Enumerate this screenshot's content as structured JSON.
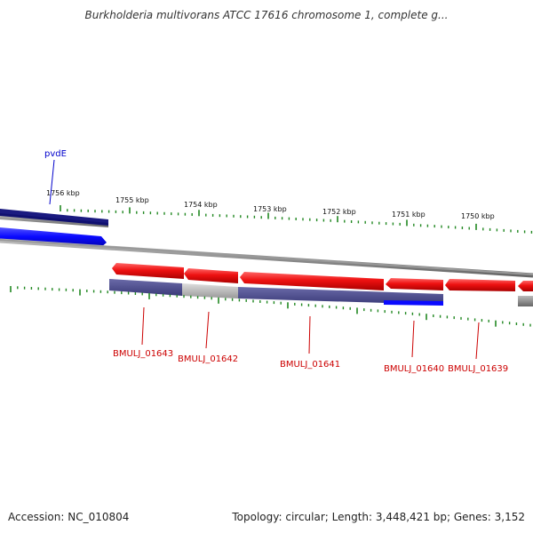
{
  "title": "Burkholderia multivorans ATCC 17616 chromosome 1, complete g...",
  "accession": "Accession: NC_010804",
  "summary": "Topology: circular; Length: 3,448,421 bp; Genes: 3,152",
  "scale": {
    "labels": [
      "1756 kbp",
      "1755 kbp",
      "1754 kbp",
      "1753 kbp",
      "1752 kbp",
      "1751 kbp",
      "1750 kbp"
    ]
  },
  "genes": [
    {
      "label": "pvdE",
      "color": "#0000cc",
      "strand": "forward"
    },
    {
      "label": "BMULJ_01643",
      "color": "#cc0000",
      "strand": "reverse"
    },
    {
      "label": "BMULJ_01642",
      "color": "#cc0000",
      "strand": "reverse"
    },
    {
      "label": "BMULJ_01641",
      "color": "#cc0000",
      "strand": "reverse"
    },
    {
      "label": "BMULJ_01640",
      "color": "#cc0000",
      "strand": "reverse"
    },
    {
      "label": "BMULJ_01639",
      "color": "#cc0000",
      "strand": "reverse"
    }
  ],
  "colors": {
    "forward_gene": "#0a0aff",
    "reverse_gene": "#ee1111",
    "backbone": "#888888",
    "tick": "#228822",
    "navy_track": "#101070",
    "slate_track": "#4a4a8a",
    "grey_track": "#bbbbbb"
  }
}
